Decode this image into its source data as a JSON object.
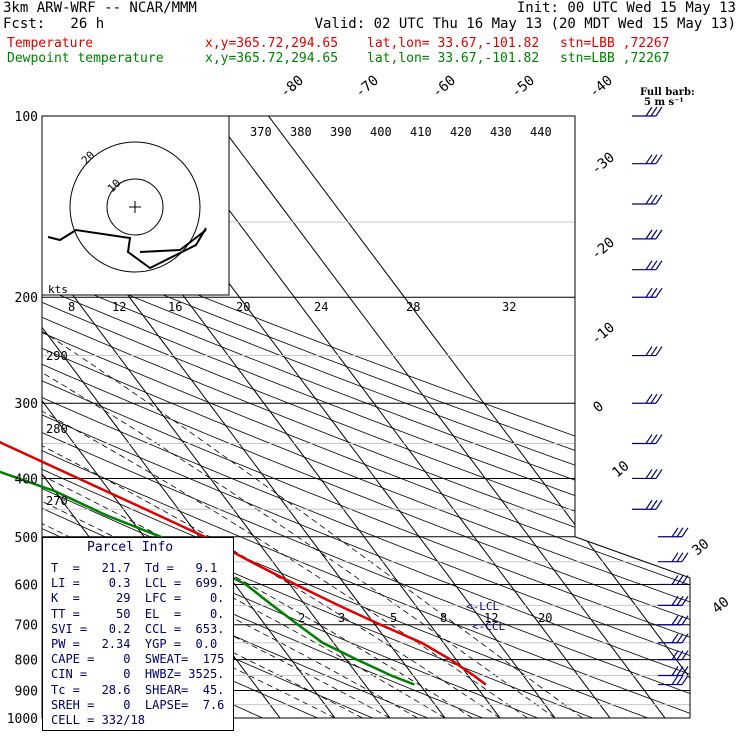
{
  "header": {
    "line1_left": "3km ARW-WRF -- NCAR/MMM",
    "line1_right": "Init: 00 UTC Wed 15 May 13",
    "line2_left": "Fcst:   26 h",
    "line2_right": "Valid: 02 UTC Thu 16 May 13 (20 MDT Wed 15 May 13)",
    "temp_label": "Temperature",
    "dew_label": "Dewpoint temperature",
    "xy": "x,y=365.72,294.65",
    "latlon": "lat,lon= 33.67,-101.82",
    "stn": "stn=LBB ,72267"
  },
  "barb_legend": {
    "line1": "Full barb:",
    "line2": "5 m s⁻¹"
  },
  "parcel": {
    "title": "Parcel Info",
    "rows": [
      "T  =   21.7  Td =   9.1",
      "LI =    0.3  LCL =  699.",
      "K  =     29  LFC =    0.",
      "TT =     50  EL  =    0.",
      "SVI =   0.2  CCL =  653.",
      "PW =   2.34  YGP =  0.0",
      "CAPE =    0  SWEAT=  175",
      "CIN =     0  HWBZ= 3525.",
      "Tc =   28.6  SHEAR=  45.",
      "SREH =    0  LAPSE=  7.6",
      "CELL = 332/18"
    ]
  },
  "hodograph": {
    "units": "kts",
    "ring_labels": [
      "10",
      "20"
    ]
  },
  "lcl_label": "<-LCL",
  "ccl_label": "<-CCL",
  "colors": {
    "temperature": "#e00000",
    "dewpoint": "#008000",
    "barbs": "#000080",
    "adiabats": "#000000"
  },
  "chart_data": {
    "type": "line",
    "title": "",
    "xlabel": "",
    "ylabel": "",
    "y_scale": "log-pressure",
    "ylim": [
      1000,
      100
    ],
    "pressure_ticks": [
      "100",
      "200",
      "300",
      "400",
      "500",
      "600",
      "700",
      "800",
      "900",
      "1000"
    ],
    "isotherm_labels": [
      "-80",
      "-70",
      "-60",
      "-50",
      "-40",
      "-30",
      "-20",
      "-10",
      "0",
      "10",
      "30",
      "40"
    ],
    "theta_labels": [
      "370",
      "380",
      "390",
      "400",
      "410",
      "420",
      "430",
      "440"
    ],
    "theta_labels_left": [
      "290",
      "280",
      "270"
    ],
    "mixing_ratio_labels_top": [
      "8",
      "12",
      "16",
      "20",
      "24",
      "28",
      "32"
    ],
    "mixing_ratio_labels_bottom": [
      "2",
      "3",
      "5",
      "8",
      "12",
      "20"
    ],
    "series": [
      {
        "name": "Temperature",
        "points": [
          [
            100,
            -58
          ],
          [
            130,
            -60
          ],
          [
            160,
            -62
          ],
          [
            185,
            -64
          ],
          [
            205,
            -61
          ],
          [
            230,
            -55
          ],
          [
            250,
            -50
          ],
          [
            300,
            -42
          ],
          [
            350,
            -33
          ],
          [
            400,
            -24
          ],
          [
            450,
            -16
          ],
          [
            500,
            -9
          ],
          [
            550,
            -4
          ],
          [
            600,
            1
          ],
          [
            650,
            6
          ],
          [
            700,
            11
          ],
          [
            750,
            16
          ],
          [
            800,
            19
          ],
          [
            850,
            21
          ],
          [
            880,
            22
          ]
        ]
      },
      {
        "name": "Dewpoint temperature",
        "points": [
          [
            100,
            -76
          ],
          [
            120,
            -82
          ],
          [
            140,
            -86
          ],
          [
            160,
            -89
          ],
          [
            180,
            -88
          ],
          [
            205,
            -84
          ],
          [
            240,
            -78
          ],
          [
            280,
            -70
          ],
          [
            330,
            -55
          ],
          [
            380,
            -40
          ],
          [
            420,
            -30
          ],
          [
            460,
            -24
          ],
          [
            500,
            -17
          ],
          [
            550,
            -13
          ],
          [
            600,
            -8
          ],
          [
            650,
            -6
          ],
          [
            700,
            -4
          ],
          [
            750,
            -2
          ],
          [
            800,
            2
          ],
          [
            850,
            6
          ],
          [
            880,
            9
          ]
        ]
      }
    ],
    "wind_barbs_pressure": [
      100,
      120,
      140,
      160,
      180,
      200,
      250,
      300,
      350,
      400,
      450,
      500,
      550,
      600,
      650,
      700,
      750,
      800,
      850,
      880
    ]
  }
}
